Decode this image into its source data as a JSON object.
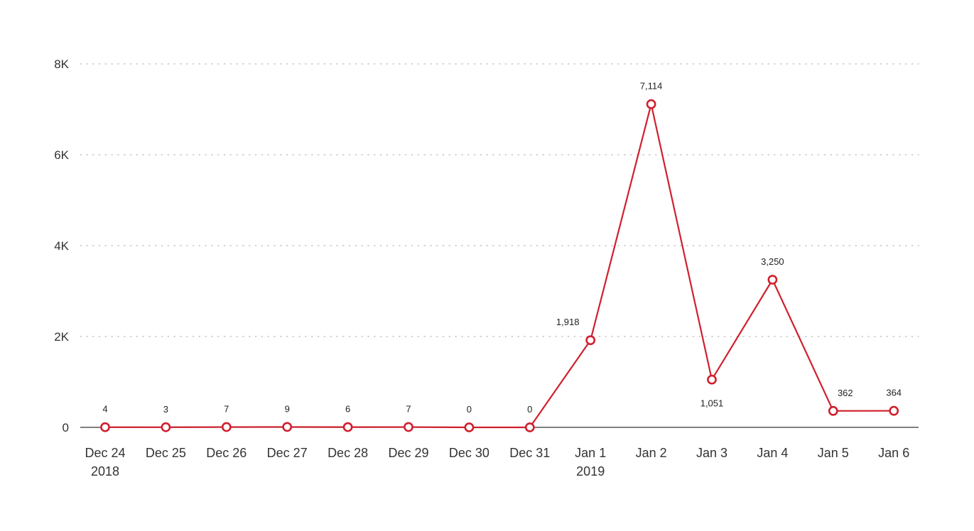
{
  "chart_data": {
    "type": "line",
    "title": "",
    "xlabel": "",
    "ylabel": "",
    "x": [
      "2018-12-24",
      "2018-12-25",
      "2018-12-26",
      "2018-12-27",
      "2018-12-28",
      "2018-12-29",
      "2018-12-30",
      "2018-12-31",
      "2019-01-01",
      "2019-01-02",
      "2019-01-03",
      "2019-01-04",
      "2019-01-05",
      "2019-01-06"
    ],
    "x_tick_labels": [
      [
        "Dec 24",
        "2018"
      ],
      [
        "Dec 25"
      ],
      [
        "Dec 26"
      ],
      [
        "Dec 27"
      ],
      [
        "Dec 28"
      ],
      [
        "Dec 29"
      ],
      [
        "Dec 30"
      ],
      [
        "Dec 31"
      ],
      [
        "Jan 1",
        "2019"
      ],
      [
        "Jan 2"
      ],
      [
        "Jan 3"
      ],
      [
        "Jan 4"
      ],
      [
        "Jan 5"
      ],
      [
        "Jan 6"
      ]
    ],
    "series": [
      {
        "values": [
          4,
          3,
          7,
          9,
          6,
          7,
          0,
          0,
          1918,
          7114,
          1051,
          3250,
          362,
          364
        ],
        "data_labels": [
          "4",
          "3",
          "7",
          "9",
          "6",
          "7",
          "0",
          "0",
          "1,918",
          "7,114",
          "1,051",
          "3,250",
          "362",
          "364"
        ],
        "color": "#d0202e"
      }
    ],
    "ylim": [
      0,
      8000
    ],
    "y_ticks": [
      0,
      2000,
      4000,
      6000,
      8000
    ],
    "y_tick_labels": [
      "0",
      "2K",
      "4K",
      "6K",
      "8K"
    ],
    "grid": true,
    "legend": "none"
  }
}
